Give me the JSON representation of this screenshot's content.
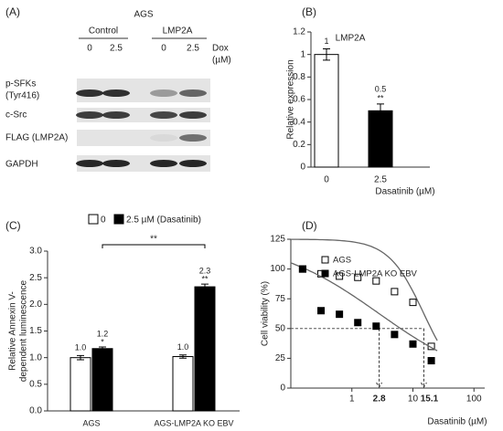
{
  "panel_a": {
    "label": "(A)",
    "title": "AGS",
    "groups": [
      "Control",
      "LMP2A"
    ],
    "doses": [
      "0",
      "2.5",
      "0",
      "2.5"
    ],
    "dose_unit": [
      "Dox",
      "(µM)"
    ],
    "rows": [
      [
        "p-SFKs",
        "(Tyr416)"
      ],
      [
        "c-Src"
      ],
      [
        "FLAG (LMP2A)"
      ],
      [
        "GAPDH"
      ]
    ]
  },
  "chart_data": [
    {
      "type": "bar",
      "panel": "(B)",
      "title": "LMP2A",
      "categories": [
        "0",
        "2.5"
      ],
      "values": [
        1,
        0.5
      ],
      "errors": [
        0.05,
        0.06
      ],
      "value_labels": [
        "1",
        "0.5"
      ],
      "significance": [
        null,
        "**"
      ],
      "colors": [
        "#ffffff",
        "#000000"
      ],
      "ylabel": "Relative expression",
      "xlabel": "Dasatinib (µM)",
      "ylim": [
        0,
        1.2
      ],
      "yticks": [
        0,
        0.2,
        0.4,
        0.6,
        0.8,
        1,
        1.2
      ]
    },
    {
      "type": "grouped_bar",
      "panel": "(C)",
      "categories": [
        "AGS",
        "AGS-LMP2A KO EBV"
      ],
      "series": [
        {
          "name": "0",
          "color": "#ffffff",
          "values": [
            1.0,
            1.02
          ],
          "errors": [
            0.04,
            0.03
          ],
          "value_labels": [
            "1.0",
            "1.0"
          ],
          "significance": [
            null,
            null
          ]
        },
        {
          "name": "2.5 µM (Dasatinib)",
          "color": "#000000",
          "values": [
            1.17,
            2.33
          ],
          "errors": [
            0.03,
            0.05
          ],
          "value_labels": [
            "1.2",
            "2.3"
          ],
          "significance": [
            "*",
            "**"
          ]
        }
      ],
      "bracket": "**",
      "ylabel": [
        "Relative Annexin V-",
        "dependent luminescence"
      ],
      "ylim": [
        0,
        3
      ],
      "yticks": [
        {
          "value": 0,
          "label": "0.0"
        },
        0.5,
        {
          "value": 1,
          "label": "1.0"
        },
        1.5,
        {
          "value": 2,
          "label": "2.0"
        },
        2.5,
        {
          "value": 3,
          "label": "3.0"
        }
      ]
    },
    {
      "type": "scatter",
      "panel": "(D)",
      "xscale": "log",
      "x": [
        0.156,
        0.3125,
        0.625,
        1.25,
        2.5,
        5,
        10,
        20
      ],
      "series": [
        {
          "name": "AGS",
          "marker": "open",
          "values": [
            100,
            96,
            94,
            93,
            90,
            81,
            72,
            35
          ]
        },
        {
          "name": "AGS-LMP2A KO EBV",
          "marker": "filled",
          "values": [
            100,
            65,
            62,
            55,
            52,
            45,
            37,
            23
          ]
        }
      ],
      "reference_y": 50,
      "annotations": [
        2.8,
        15.1
      ],
      "ylabel": "Cell viability (%)",
      "xlabel": "Dasatinib (µM)",
      "xlim": [
        0.1,
        150
      ],
      "xticks": [
        1,
        10,
        100
      ],
      "ylim": [
        0,
        125
      ],
      "yticks": [
        0,
        25,
        50,
        75,
        100,
        125
      ]
    }
  ]
}
